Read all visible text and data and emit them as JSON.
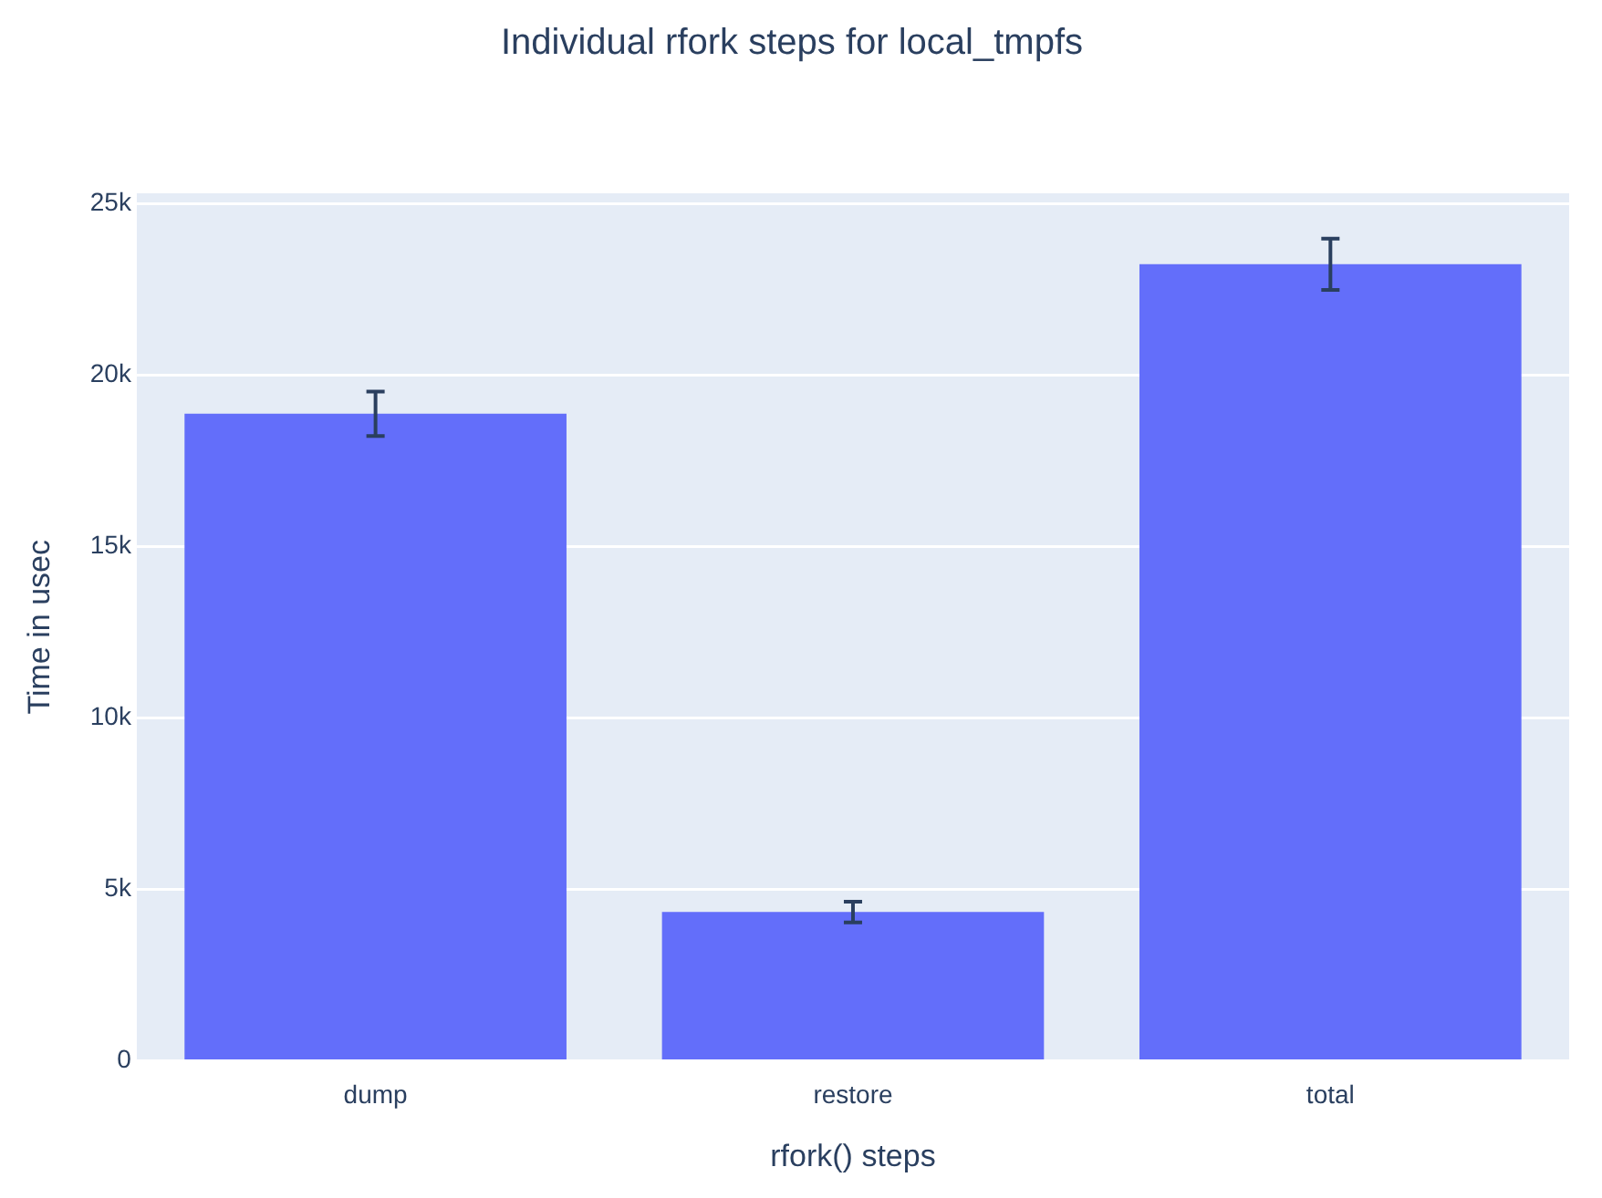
{
  "chart_data": {
    "type": "bar",
    "title": "Individual rfork steps for local_tmpfs",
    "xlabel": "rfork() steps",
    "ylabel": "Time in usec",
    "categories": [
      "dump",
      "restore",
      "total"
    ],
    "values": [
      18870,
      4340,
      23230
    ],
    "errors": [
      650,
      300,
      750
    ],
    "color": "#636efa",
    "ylim": [
      0,
      25300
    ],
    "yticks": [
      {
        "value": 0,
        "label": "0"
      },
      {
        "value": 5000,
        "label": "5k"
      },
      {
        "value": 10000,
        "label": "10k"
      },
      {
        "value": 15000,
        "label": "15k"
      },
      {
        "value": 20000,
        "label": "20k"
      },
      {
        "value": 25000,
        "label": "25k"
      }
    ],
    "grid": "y",
    "legend": false
  }
}
